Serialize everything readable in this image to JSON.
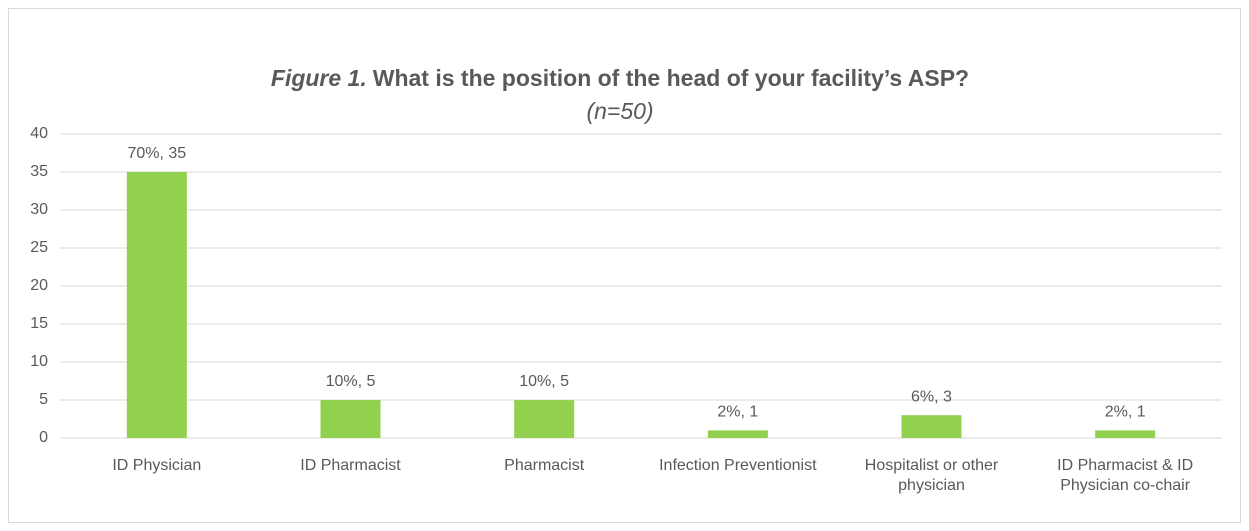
{
  "chart_data": {
    "type": "bar",
    "title": {
      "figure": "Figure 1.",
      "text": "What is the position of the head of your facility’s ASP?"
    },
    "subtitle": "(n=50)",
    "categories": [
      "ID Physician",
      "ID Pharmacist",
      "Pharmacist",
      "Infection Preventionist",
      "Hospitalist or other physician",
      "ID Pharmacist & ID Physician co-chair"
    ],
    "values": [
      35,
      5,
      5,
      1,
      3,
      1
    ],
    "value_labels": [
      "70%, 35",
      "10%, 5",
      "10%, 5",
      "2%, 1",
      "6%, 3",
      "2%, 1"
    ],
    "color": "#92d050",
    "ylim": [
      0,
      40
    ],
    "yticks": [
      0,
      5,
      10,
      15,
      20,
      25,
      30,
      35,
      40
    ],
    "grid": true
  }
}
